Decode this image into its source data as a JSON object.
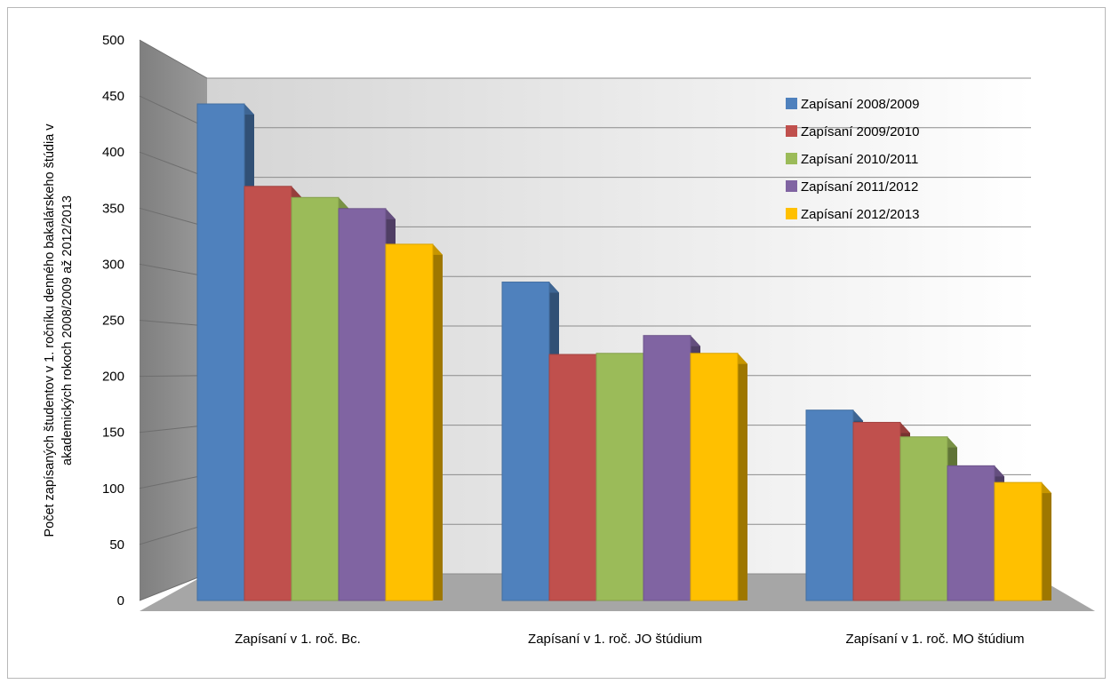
{
  "chart_data": {
    "type": "bar",
    "title": "",
    "ylabel_lines": [
      "Počet zapísaných študentov v 1. ročníku  denného bakalárskeho štúdia v",
      "akademických rokoch  2008/2009  až 2012/2013"
    ],
    "xlabel": "",
    "categories": [
      "Zapísaní v 1. roč. Bc.",
      "Zapísaní v 1. roč. JO štúdium",
      "Zapísaní v 1. roč. MO štúdium"
    ],
    "series": [
      {
        "name": "Zapísaní 2008/2009",
        "color": "#4F81BD",
        "values": [
          446,
          286,
          171
        ]
      },
      {
        "name": "Zapísaní 2009/2010",
        "color": "#C0504D",
        "values": [
          372,
          221,
          160
        ]
      },
      {
        "name": "Zapísaní 2010/2011",
        "color": "#9BBB59",
        "values": [
          362,
          222,
          147
        ]
      },
      {
        "name": "Zapísaní 2011/2012",
        "color": "#8064A2",
        "values": [
          352,
          238,
          121
        ]
      },
      {
        "name": "Zapísaní 2012/2013",
        "color": "#FFC000",
        "values": [
          320,
          222,
          106
        ]
      }
    ],
    "ylim": [
      0,
      500
    ],
    "yticks": [
      "0",
      "50",
      "100",
      "150",
      "200",
      "250",
      "300",
      "350",
      "400",
      "450",
      "500"
    ],
    "grid": true,
    "legend_position": "top-right",
    "style": "3d-clustered-column"
  }
}
